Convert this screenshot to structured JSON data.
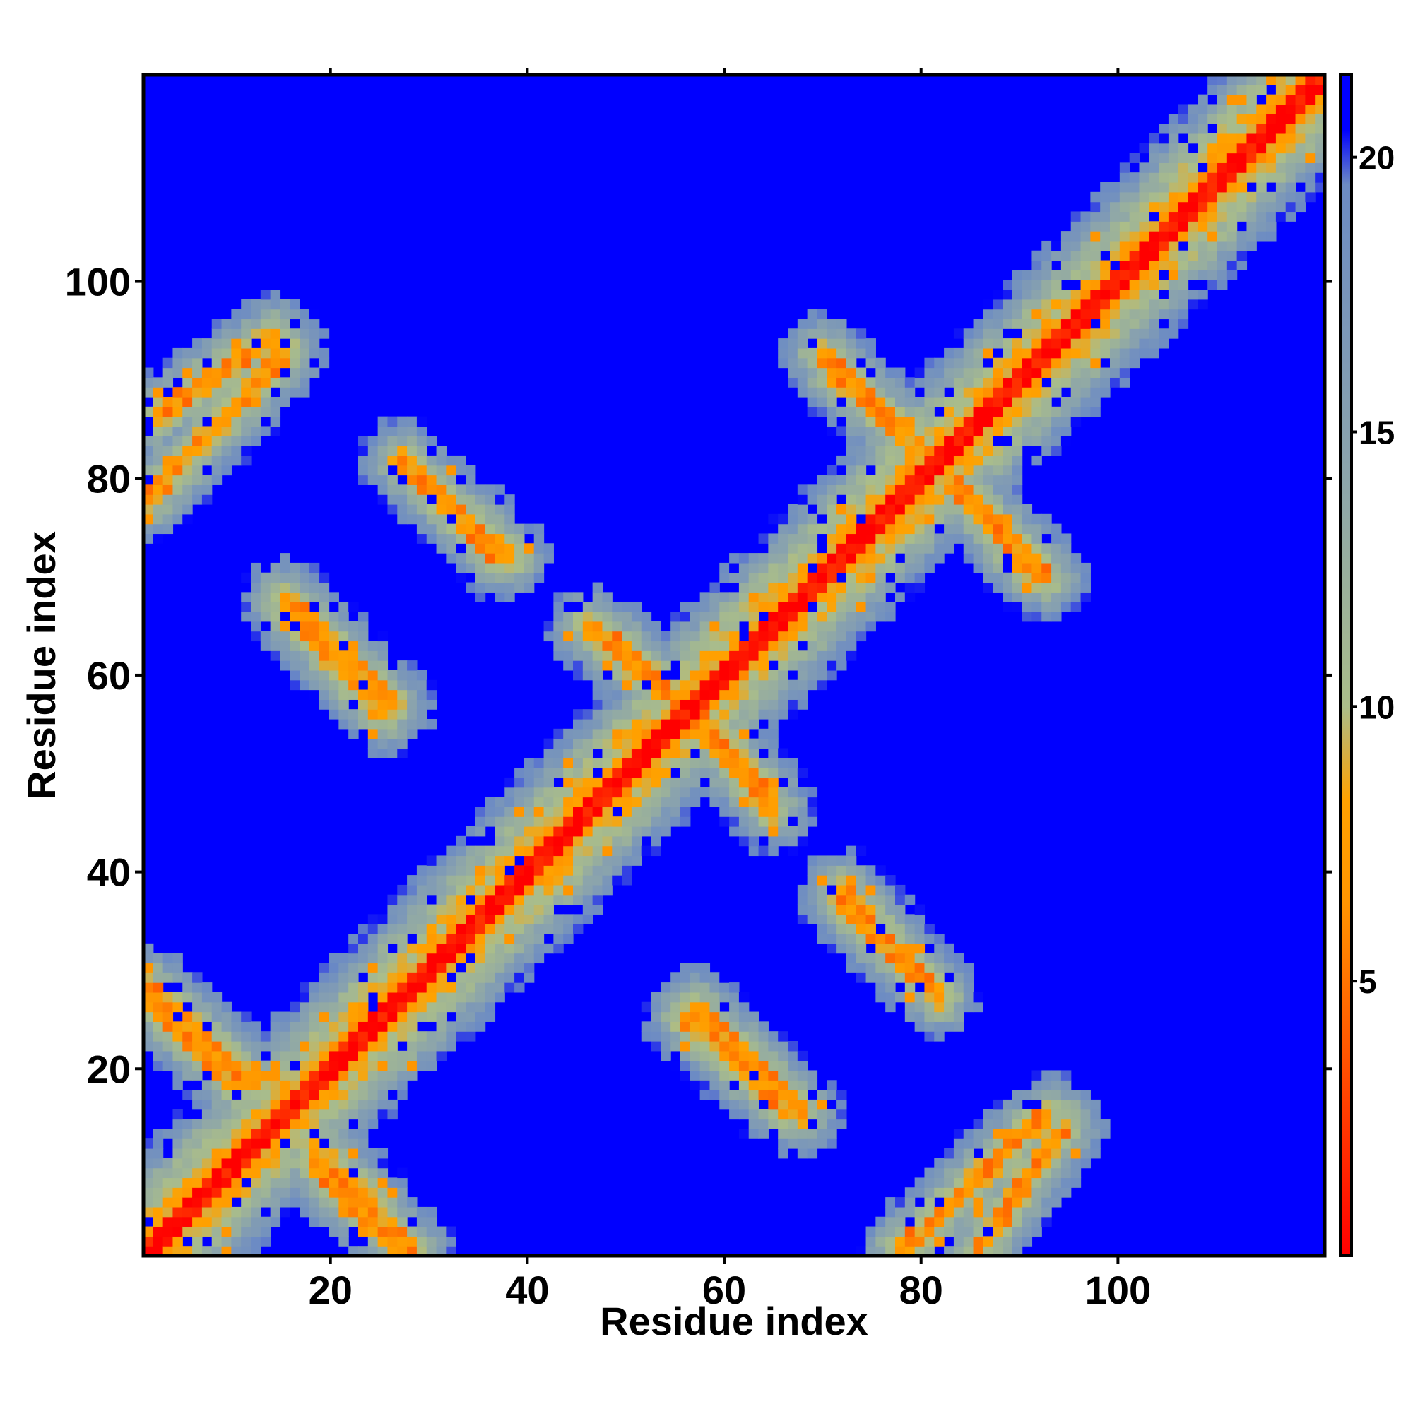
{
  "chart_data": {
    "type": "heatmap",
    "title": "",
    "xlabel": "Residue index",
    "ylabel": "Residue index",
    "n_residues": 121,
    "xlim": [
      1,
      121
    ],
    "ylim": [
      1,
      121
    ],
    "x_ticks": [
      20,
      40,
      60,
      80,
      100
    ],
    "y_ticks": [
      20,
      40,
      60,
      80,
      100
    ],
    "colorbar": {
      "ticks": [
        5,
        10,
        15,
        20
      ],
      "range": [
        0,
        21.5
      ],
      "colors": [
        "#ff0000",
        "#ff3a00",
        "#ff9600",
        "#ffa200",
        "#aabd8a",
        "#8aa3ad",
        "#6c8bc4",
        "#0000ff"
      ],
      "stops": [
        0,
        2.5,
        6.5,
        8.3,
        10,
        14.5,
        19.5,
        20.5
      ]
    },
    "background_color": "#0000ff",
    "diagonal_bands": [
      {
        "name": "main diagonal",
        "from": [
          1,
          1
        ],
        "to": [
          121,
          121
        ],
        "distance": 0.5
      }
    ],
    "antiparallel_contacts": [
      {
        "from": [
          1,
          28
        ],
        "to": [
          12,
          18
        ],
        "distance": 6
      },
      {
        "from": [
          1,
          86
        ],
        "to": [
          14,
          95
        ],
        "distance": 6
      },
      {
        "from": [
          15,
          68
        ],
        "to": [
          26,
          57
        ],
        "distance": 6
      },
      {
        "from": [
          18,
          10
        ],
        "to": [
          27,
          1
        ],
        "distance": 6
      },
      {
        "from": [
          27,
          82
        ],
        "to": [
          37,
          72
        ],
        "distance": 6
      },
      {
        "from": [
          46,
          65
        ],
        "to": [
          58,
          55
        ],
        "distance": 6
      },
      {
        "from": [
          56,
          57
        ],
        "to": [
          64,
          48
        ],
        "distance": 6
      },
      {
        "from": [
          56,
          25
        ],
        "to": [
          67,
          15
        ],
        "distance": 6
      },
      {
        "from": [
          71,
          91
        ],
        "to": [
          83,
          81
        ],
        "distance": 6
      },
      {
        "from": [
          72,
          38
        ],
        "to": [
          81,
          28
        ],
        "distance": 6
      },
      {
        "from": [
          83,
          80
        ],
        "to": [
          93,
          70
        ],
        "distance": 6
      },
      {
        "from": [
          78,
          1
        ],
        "to": [
          93,
          15
        ],
        "distance": 6
      }
    ]
  }
}
